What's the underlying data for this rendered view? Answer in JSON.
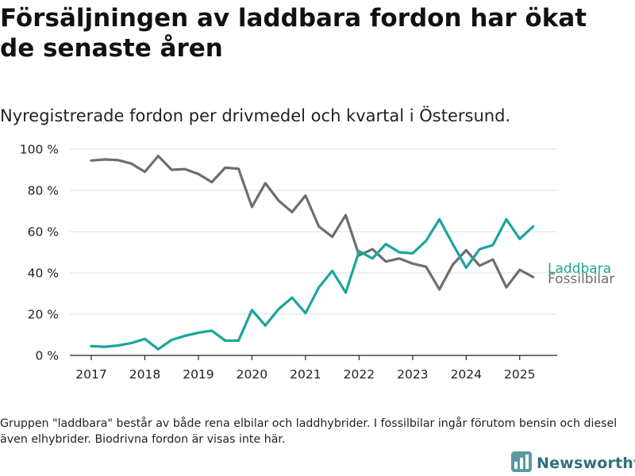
{
  "title": "Försäljningen av laddbara fordon har ökat de senaste åren",
  "subtitle": "Nyregistrerade fordon per drivmedel och kvartal i Östersund.",
  "footnote": "Gruppen \"laddbara\" består av både rena elbilar och laddhybrider. I fossilbilar ingår förutom bensin och diesel även elhybrider. Biodrivna fordon är visas inte här.",
  "brand": {
    "name": "Newsworthy",
    "icon": "bar-chart-logo-icon",
    "color": "#2e6f7c"
  },
  "chart_data": {
    "type": "line",
    "x_tick_labels": [
      "2017",
      "2018",
      "2019",
      "2020",
      "2021",
      "2022",
      "2023",
      "2024",
      "2025"
    ],
    "x_tick_values": [
      2017,
      2018,
      2019,
      2020,
      2021,
      2022,
      2023,
      2024,
      2025
    ],
    "y_tick_labels": [
      "0 %",
      "20 %",
      "40 %",
      "60 %",
      "80 %",
      "100 %"
    ],
    "y_tick_values": [
      0,
      20,
      40,
      60,
      80,
      100
    ],
    "ylim": [
      0,
      100
    ],
    "xlim": [
      2016.6,
      2025.7
    ],
    "grid": true,
    "legend": "direct-labels-right",
    "x": [
      2017,
      2017.25,
      2017.5,
      2017.75,
      2018,
      2018.25,
      2018.5,
      2018.75,
      2019,
      2019.25,
      2019.5,
      2019.75,
      2020,
      2020.25,
      2020.5,
      2020.75,
      2021,
      2021.25,
      2021.5,
      2021.75,
      2022,
      2022.25,
      2022.5,
      2022.75,
      2023,
      2023.25,
      2023.5,
      2023.75,
      2024,
      2024.25,
      2024.5,
      2024.75,
      2025,
      2025.25
    ],
    "series": [
      {
        "name": "Laddbara",
        "color": "#1aa59b",
        "values": [
          4.5,
          4.2,
          4.8,
          6,
          8,
          3,
          7.5,
          9.5,
          11,
          12,
          7.2,
          7.2,
          22,
          14.5,
          22.5,
          28,
          20.5,
          33,
          41,
          30.5,
          50.5,
          47,
          54,
          50,
          49.5,
          55.5,
          66,
          54,
          42.5,
          51.5,
          53.5,
          66,
          56.5,
          62.5
        ]
      },
      {
        "name": "Fossilbilar",
        "color": "#6e6e72",
        "values": [
          94.5,
          95,
          94.7,
          93,
          89,
          96.7,
          90,
          90.3,
          88,
          84,
          91,
          90.5,
          72,
          83.5,
          75,
          69.5,
          77.5,
          62.5,
          57.5,
          68,
          48.5,
          51.5,
          45.5,
          47,
          44.5,
          43,
          32,
          44,
          51,
          43.5,
          46.5,
          33,
          41.5,
          38
        ]
      }
    ]
  }
}
